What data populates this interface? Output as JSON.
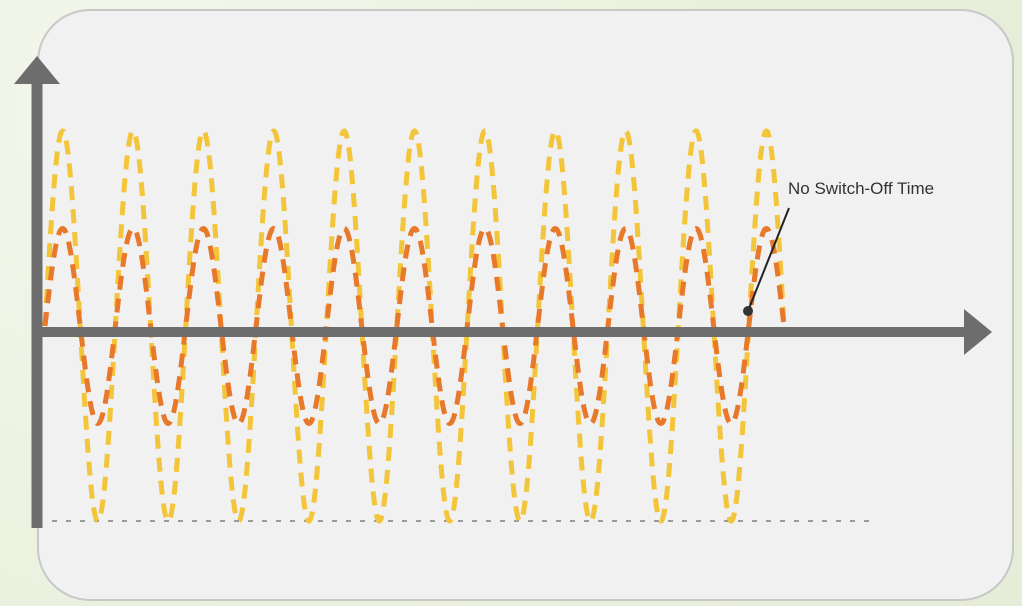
{
  "chart_data": {
    "type": "line",
    "title": "",
    "xlabel": "",
    "ylabel": "",
    "grid": false,
    "legend": "none",
    "x_range": [
      0,
      10.5
    ],
    "y_range": [
      -1.1,
      1.1
    ],
    "series": [
      {
        "style": "dashed-outer",
        "color": "#f2c53a",
        "amplitude": 1.0,
        "cycles": 10.5,
        "start_phase": "zero-rising",
        "end": "at zero crossing"
      },
      {
        "style": "dashed-inner",
        "color": "#e8782a",
        "amplitude": 0.5,
        "cycles": 10.5,
        "start_phase": "zero-rising",
        "end": "at zero crossing"
      }
    ],
    "reference_line": {
      "style": "dotted",
      "y": -1.0,
      "color": "#999999"
    },
    "annotation": {
      "text": "No Switch-Off Time",
      "target": "final zero crossing of signal"
    }
  },
  "colors": {
    "panel": "#f1f1f1",
    "panel_border": "#c8c8c8",
    "axis": "#6d6d6d",
    "outer_wave": "#f2c53a",
    "inner_wave": "#e8782a",
    "annotation_line": "#222222"
  }
}
